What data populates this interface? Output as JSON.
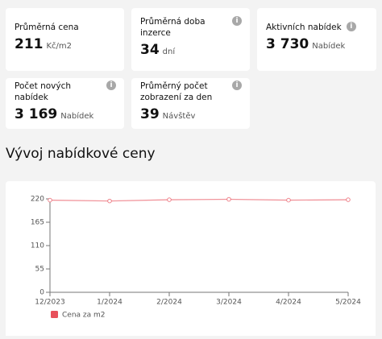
{
  "cards": [
    {
      "label": "Průměrná cena",
      "value": "211",
      "unit": "Kč/m2",
      "info": false
    },
    {
      "label": "Průměrná doba inzerce",
      "value": "34",
      "unit": "dní",
      "info": true
    },
    {
      "label": "Aktivních nabídek",
      "value": "3 730",
      "unit": "Nabídek",
      "info": true
    },
    {
      "label": "Počet nových nabídek",
      "value": "3 169",
      "unit": "Nabídek",
      "info": true
    },
    {
      "label": "Průměrný počet zobrazení za den",
      "value": "39",
      "unit": "Návštěv",
      "info": true
    }
  ],
  "chart_data": {
    "type": "line",
    "title": "Vývoj nabídkové ceny",
    "categories": [
      "12/2023",
      "1/2024",
      "2/2024",
      "3/2024",
      "4/2024",
      "5/2024"
    ],
    "series": [
      {
        "name": "Cena za m2",
        "color": "#e8505b",
        "values": [
          217,
          215,
          218,
          219,
          217,
          218
        ]
      }
    ],
    "ylim": [
      0,
      220
    ],
    "yticks": [
      0,
      55,
      110,
      165,
      220
    ],
    "grid": false
  }
}
